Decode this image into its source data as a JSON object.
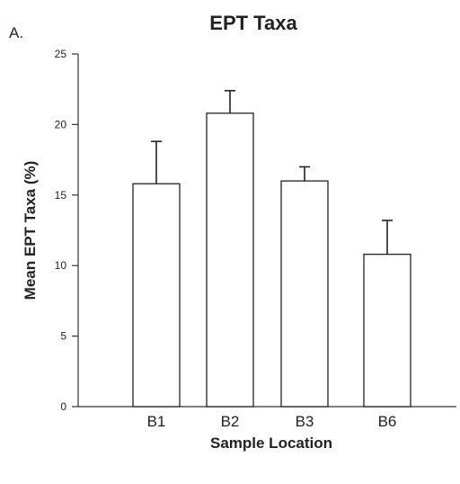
{
  "chart_data": {
    "type": "bar",
    "panel_label": "A.",
    "title": "EPT Taxa",
    "xlabel": "Sample Location",
    "ylabel": "Mean EPT Taxa (%)",
    "categories": [
      "B1",
      "B2",
      "B3",
      "B6"
    ],
    "values": [
      15.8,
      20.8,
      16.0,
      10.8
    ],
    "error_upper": [
      3.0,
      1.6,
      1.0,
      2.4
    ],
    "ylim": [
      0,
      25
    ],
    "yticks": [
      0,
      5,
      10,
      15,
      20,
      25
    ],
    "grid": false,
    "legend": "none"
  }
}
